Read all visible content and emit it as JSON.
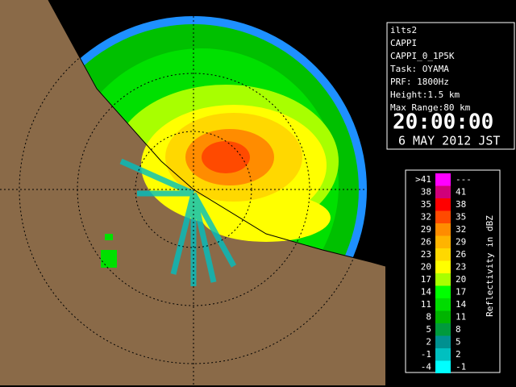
{
  "panel": {
    "lines": [
      "ilts2",
      "CAPPI",
      "CAPPI_0_1P5K",
      "Task: OYAMA",
      "PRF: 1800Hz",
      "Height:1.5 km",
      "Max Range:80 km"
    ],
    "time": "20:00:00",
    "date": "6 MAY 2012 JST"
  },
  "legend": {
    "title": "Reflectivity in dBZ",
    "rows": [
      {
        "low": ">41",
        "high": "---",
        "color": "#ff00ff"
      },
      {
        "low": "38",
        "high": "41",
        "color": "#d0007a"
      },
      {
        "low": "35",
        "high": "38",
        "color": "#ff0000"
      },
      {
        "low": "32",
        "high": "35",
        "color": "#ff4a00"
      },
      {
        "low": "29",
        "high": "32",
        "color": "#ff8c00"
      },
      {
        "low": "26",
        "high": "29",
        "color": "#ffb400"
      },
      {
        "low": "23",
        "high": "26",
        "color": "#ffd800"
      },
      {
        "low": "20",
        "high": "23",
        "color": "#ffff00"
      },
      {
        "low": "17",
        "high": "20",
        "color": "#a8ff00"
      },
      {
        "low": "14",
        "high": "17",
        "color": "#00ff00"
      },
      {
        "low": "11",
        "high": "14",
        "color": "#00dc00"
      },
      {
        "low": "8",
        "high": "11",
        "color": "#00b400"
      },
      {
        "low": "5",
        "high": "8",
        "color": "#009a3c"
      },
      {
        "low": "2",
        "high": "5",
        "color": "#009090"
      },
      {
        "low": "-1",
        "high": "2",
        "color": "#00c0c0"
      },
      {
        "low": "-4",
        "high": "-1",
        "color": "#00ffff"
      }
    ]
  }
}
